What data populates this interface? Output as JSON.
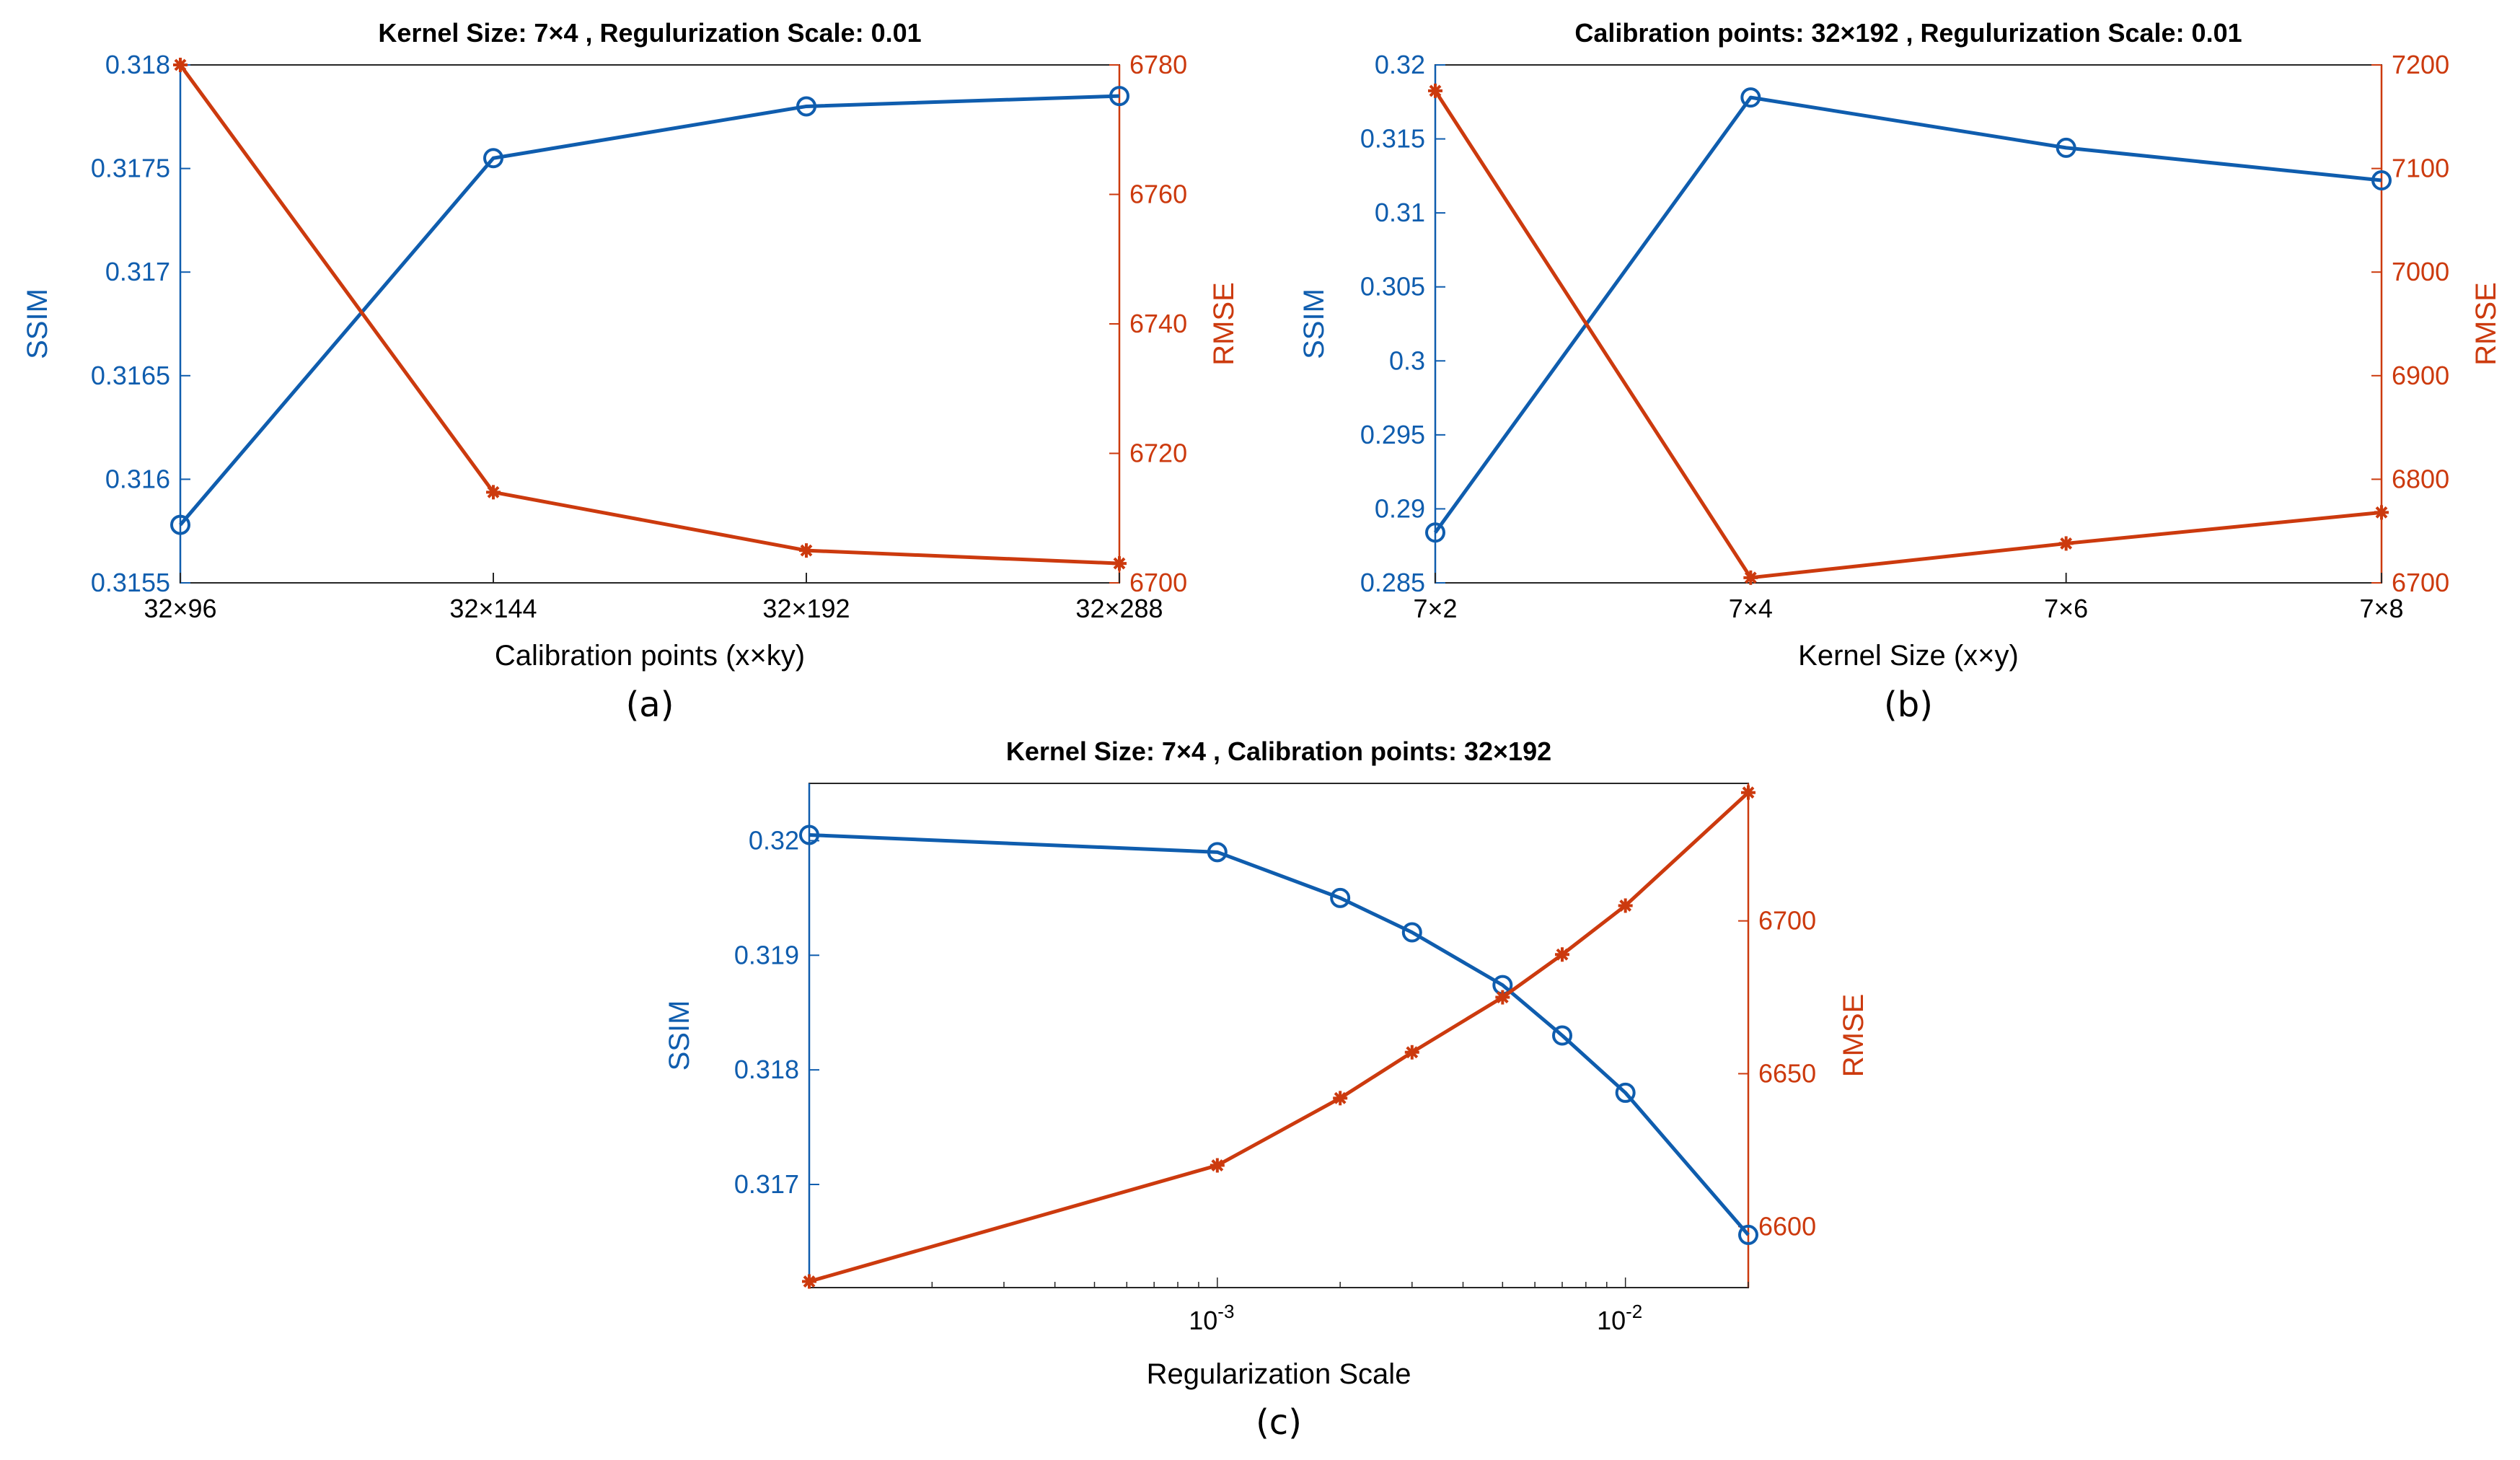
{
  "colors": {
    "ssim": "#0F5DAE",
    "rmse": "#CC3A0E",
    "axis": "#262626"
  },
  "chart_data": [
    {
      "type": "line",
      "title": "Kernel Size: 7×4 , Regulurization Scale: 0.01",
      "caption": "(a)",
      "xlabel": "Calibration points (x×ky)",
      "ylabel_left": "SSIM",
      "ylabel_right": "RMSE",
      "x_scale": "categorical",
      "categories": [
        "32×96",
        "32×144",
        "32×192",
        "32×288"
      ],
      "ylim_left": [
        0.3155,
        0.318
      ],
      "yticks_left": [
        "0.3155",
        "0.316",
        "0.3165",
        "0.317",
        "0.3175",
        "0.318"
      ],
      "ylim_right": [
        6700,
        6780
      ],
      "yticks_right": [
        "6700",
        "6720",
        "6740",
        "6760",
        "6780"
      ],
      "series": [
        {
          "name": "SSIM",
          "axis": "left",
          "marker": "circle",
          "values": [
            0.31578,
            0.31755,
            0.3178,
            0.31785
          ]
        },
        {
          "name": "RMSE",
          "axis": "right",
          "marker": "star",
          "values": [
            6780,
            6714,
            6705,
            6703
          ]
        }
      ]
    },
    {
      "type": "line",
      "title": "Calibration points: 32×192 , Regulurization Scale: 0.01",
      "caption": "(b)",
      "xlabel": "Kernel Size (x×y)",
      "ylabel_left": "SSIM",
      "ylabel_right": "RMSE",
      "x_scale": "categorical",
      "categories": [
        "7×2",
        "7×4",
        "7×6",
        "7×8"
      ],
      "ylim_left": [
        0.285,
        0.32
      ],
      "yticks_left": [
        "0.285",
        "0.29",
        "0.295",
        "0.3",
        "0.305",
        "0.31",
        "0.315",
        "0.32"
      ],
      "ylim_right": [
        6700,
        7200
      ],
      "yticks_right": [
        "6700",
        "6800",
        "6900",
        "7000",
        "7100",
        "7200"
      ],
      "series": [
        {
          "name": "SSIM",
          "axis": "left",
          "marker": "circle",
          "values": [
            0.2884,
            0.3178,
            0.3144,
            0.3122
          ]
        },
        {
          "name": "RMSE",
          "axis": "right",
          "marker": "star",
          "values": [
            7175,
            6705,
            6738,
            6768
          ]
        }
      ]
    },
    {
      "type": "line",
      "title": "Kernel Size: 7×4 , Calibration points: 32×192",
      "caption": "(c)",
      "xlabel": "Regularization Scale",
      "ylabel_left": "SSIM",
      "ylabel_right": "RMSE",
      "x_scale": "log",
      "xlim": [
        0.0001,
        0.02
      ],
      "xticks": [
        {
          "value": 0.001,
          "base": "10",
          "exp": "-3"
        },
        {
          "value": 0.01,
          "base": "10",
          "exp": "-2"
        }
      ],
      "x": [
        0.0001,
        0.001,
        0.002,
        0.003,
        0.005,
        0.007,
        0.01,
        0.02
      ],
      "ylim_left": [
        0.3161,
        0.3205
      ],
      "yticks_left": [
        "0.317",
        "0.318",
        "0.319",
        "0.32"
      ],
      "ylim_right": [
        6580,
        6745
      ],
      "yticks_right": [
        "6600",
        "6650",
        "6700"
      ],
      "series": [
        {
          "name": "SSIM",
          "axis": "left",
          "marker": "circle",
          "values": [
            0.32005,
            0.3199,
            0.3195,
            0.3192,
            0.31874,
            0.3183,
            0.3178,
            0.31656
          ]
        },
        {
          "name": "RMSE",
          "axis": "right",
          "marker": "star",
          "values": [
            6582,
            6620,
            6642,
            6657,
            6675,
            6689,
            6705,
            6742
          ]
        }
      ]
    }
  ]
}
